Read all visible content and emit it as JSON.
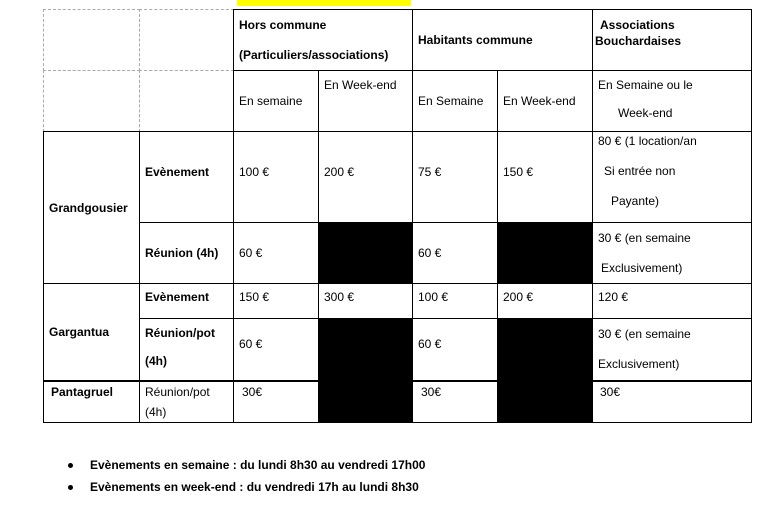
{
  "header": {
    "hors_commune": [
      "Hors commune",
      "(Particuliers/associations)"
    ],
    "habitants": "Habitants commune",
    "associations": [
      "Associations",
      "Bouchardaises"
    ],
    "hc_semaine": "En semaine",
    "hc_weekend": "En Week-end",
    "hab_semaine": "En Semaine",
    "hab_weekend": "En Week-end",
    "assoc_period": [
      "En Semaine ou le",
      "Week-end"
    ]
  },
  "rows": {
    "grandgousier": {
      "name": "Grandgousier",
      "evenement": {
        "label": "Evènement",
        "hc_sem": "100 €",
        "hc_we": "200 €",
        "hab_sem": "75 €",
        "hab_we": "150 €",
        "assoc": [
          "80 € (1 location/an",
          "Si entrée non",
          "Payante)"
        ]
      },
      "reunion": {
        "label": "Réunion (4h)",
        "hc_sem": "60 €",
        "hab_sem": "60 €",
        "assoc": [
          "30 € (en semaine",
          "Exclusivement)"
        ]
      }
    },
    "gargantua": {
      "name": "Gargantua",
      "evenement": {
        "label": "Evènement",
        "hc_sem": "150 €",
        "hc_we": "300 €",
        "hab_sem": "100 €",
        "hab_we": "200 €",
        "assoc": "120 €"
      },
      "reunion": {
        "label": [
          "Réunion/pot",
          "(4h)"
        ],
        "hc_sem": "60 €",
        "hab_sem": "60 €",
        "assoc": [
          "30 € (en semaine",
          "Exclusivement)"
        ]
      }
    },
    "pantagruel": {
      "name": "Pantagruel",
      "reunion": {
        "label": [
          "Réunion/pot",
          "(4h)"
        ],
        "hc_sem": "30€",
        "hab_sem": "30€",
        "assoc": "30€"
      }
    }
  },
  "notes": [
    "Evènements en semaine : du lundi 8h30 au vendredi 17h00",
    "Evènements en week-end : du vendredi 17h au lundi 8h30"
  ]
}
